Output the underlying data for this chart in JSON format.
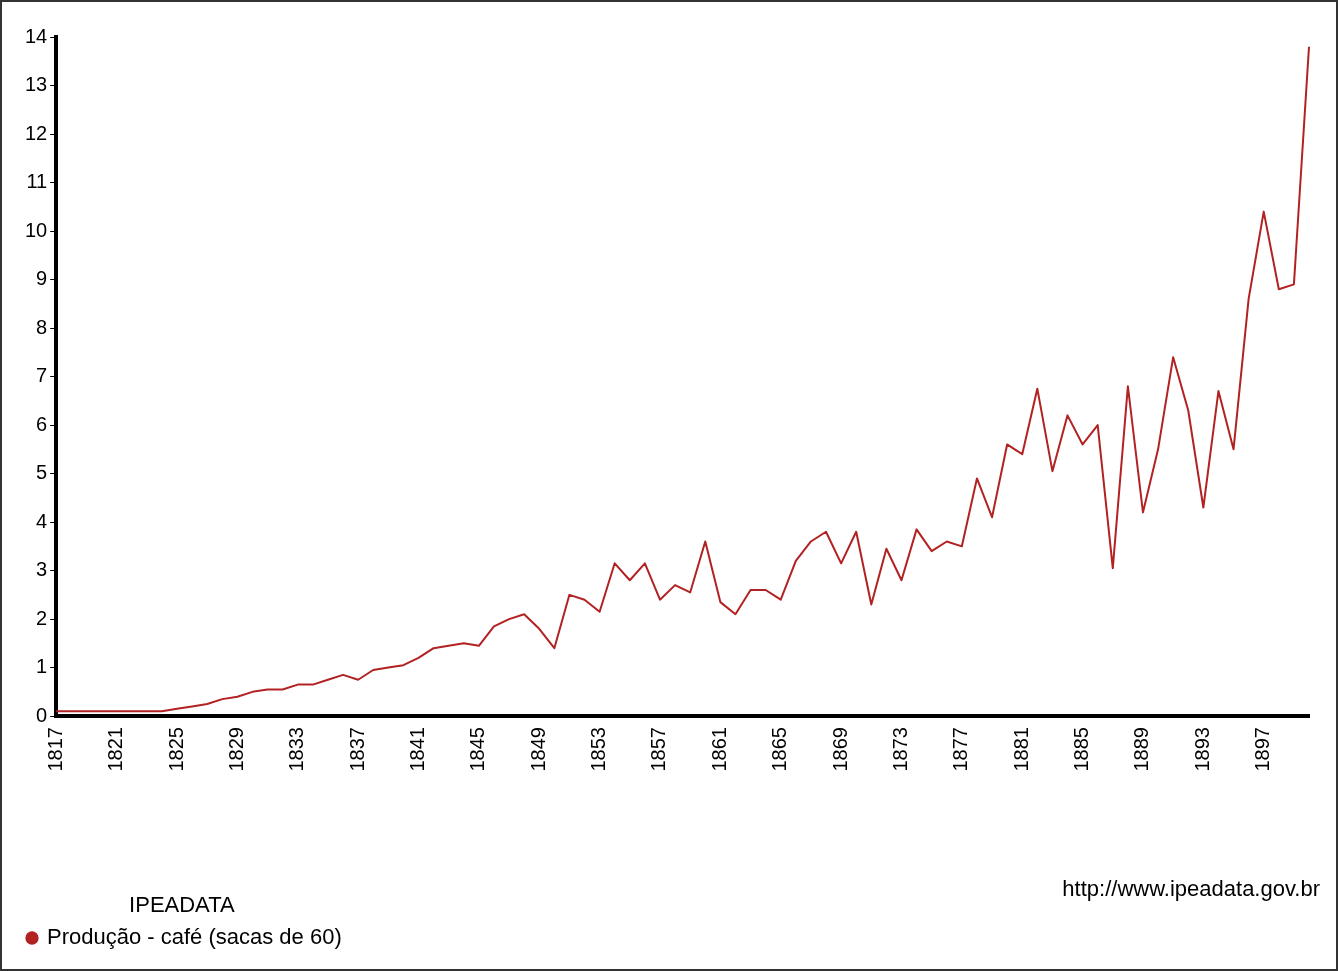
{
  "chart_data": {
    "type": "line",
    "categories": [
      "1817",
      null,
      null,
      null,
      "1821",
      null,
      null,
      null,
      "1825",
      null,
      null,
      null,
      "1829",
      null,
      null,
      null,
      "1833",
      null,
      null,
      null,
      "1837",
      null,
      null,
      null,
      "1841",
      null,
      null,
      null,
      "1845",
      null,
      null,
      null,
      "1849",
      null,
      null,
      null,
      "1853",
      null,
      null,
      null,
      "1857",
      null,
      null,
      null,
      "1861",
      null,
      null,
      null,
      "1865",
      null,
      null,
      null,
      "1869",
      null,
      null,
      null,
      "1873",
      null,
      null,
      null,
      "1877",
      null,
      null,
      null,
      "1881",
      null,
      null,
      null,
      "1885",
      null,
      null,
      null,
      "1889",
      null,
      null,
      null,
      "1893",
      null,
      null,
      null,
      "1897",
      null,
      null,
      null
    ],
    "series": [
      {
        "name": "Produção - café (sacas de 60)",
        "color": "#b22222",
        "values": [
          0.1,
          0.1,
          0.1,
          0.1,
          0.1,
          0.1,
          0.1,
          0.1,
          0.15,
          0.2,
          0.25,
          0.35,
          0.4,
          0.5,
          0.55,
          0.55,
          0.65,
          0.65,
          0.75,
          0.85,
          0.75,
          0.95,
          1.0,
          1.05,
          1.2,
          1.4,
          1.45,
          1.5,
          1.45,
          1.85,
          2.0,
          2.1,
          1.8,
          1.4,
          2.5,
          2.4,
          2.15,
          3.15,
          2.8,
          3.15,
          2.4,
          2.7,
          2.55,
          3.6,
          2.35,
          2.1,
          2.6,
          2.6,
          2.4,
          3.2,
          3.6,
          3.8,
          3.15,
          3.8,
          2.3,
          3.45,
          2.8,
          3.85,
          3.4,
          3.6,
          3.5,
          4.9,
          4.1,
          5.6,
          5.4,
          6.75,
          5.05,
          6.2,
          5.6,
          6.0,
          3.05,
          6.8,
          4.2,
          5.5,
          7.4,
          6.3,
          4.3,
          6.7,
          5.5,
          8.6,
          10.4,
          8.8,
          8.9,
          13.8
        ]
      }
    ],
    "ylim": [
      0,
      14
    ],
    "yticks": [
      0,
      1,
      2,
      3,
      4,
      5,
      6,
      7,
      8,
      9,
      10,
      11,
      12,
      13,
      14
    ],
    "grid": false,
    "legend": "bottom left",
    "legend_title": "IPEADATA",
    "marker": "none",
    "line_style": "solid",
    "annotations": [
      "http://www.ipeadata.gov.br"
    ]
  }
}
